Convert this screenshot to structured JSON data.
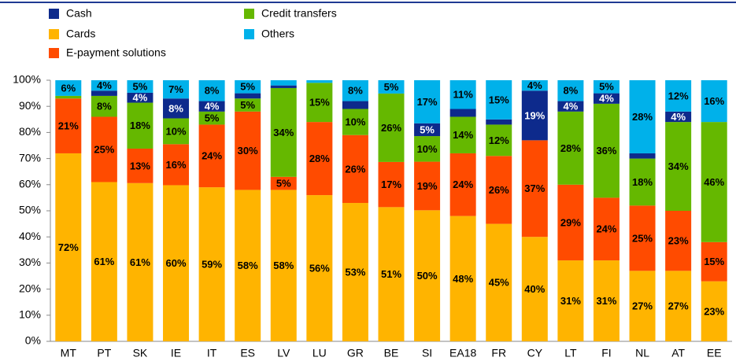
{
  "chart_data": {
    "type": "stacked_bar",
    "categories": [
      "MT",
      "PT",
      "SK",
      "IE",
      "IT",
      "ES",
      "LV",
      "LU",
      "GR",
      "BE",
      "SI",
      "EA18",
      "FR",
      "CY",
      "LT",
      "FI",
      "NL",
      "AT",
      "EE"
    ],
    "series": [
      {
        "name": "Cards",
        "color": "#ffb400",
        "label_color": "#000000",
        "values": [
          72,
          61,
          60.6,
          59.8,
          59,
          58,
          58,
          56,
          53,
          51.4,
          50.2,
          48,
          45,
          40,
          31,
          31,
          27,
          27,
          23
        ],
        "value_labels": [
          "72%",
          "61%",
          "61%",
          "60%",
          "59%",
          "58%",
          "58%",
          "56%",
          "53%",
          "51%",
          "50%",
          "48%",
          "45%",
          "40%",
          "31%",
          "31%",
          "27%",
          "27%",
          "23%"
        ]
      },
      {
        "name": "E-payment solutions",
        "color": "#ff4b00",
        "label_color": "#000000",
        "values": [
          21,
          25,
          13.2,
          15.7,
          24,
          30,
          5,
          28,
          26,
          17.3,
          18.6,
          24,
          26,
          37,
          29,
          24,
          25,
          23,
          15
        ],
        "value_labels": [
          "21%",
          "25%",
          "13%",
          "16%",
          "24%",
          "30%",
          "5%",
          "28%",
          "26%",
          "17%",
          "19%",
          "24%",
          "26%",
          "37%",
          "29%",
          "24%",
          "25%",
          "23%",
          "15%"
        ]
      },
      {
        "name": "Credit transfers",
        "color": "#65b800",
        "label_color": "#000000",
        "values": [
          1,
          8,
          17.6,
          9.9,
          5,
          5,
          34,
          15,
          10,
          26.2,
          9.8,
          14,
          12,
          0,
          28,
          36,
          18,
          34,
          46
        ],
        "value_labels": [
          null,
          "8%",
          "18%",
          "10%",
          "5%",
          "5%",
          "34%",
          "15%",
          "10%",
          "26%",
          "10%",
          "14%",
          "12%",
          null,
          "28%",
          "36%",
          "18%",
          "34%",
          "46%"
        ]
      },
      {
        "name": "Cash",
        "color": "#0d2a8c",
        "label_color": "#ffffff",
        "values": [
          0,
          2,
          3.8,
          7.6,
          4,
          2,
          1,
          0,
          3,
          0,
          4.9,
          3,
          2,
          19,
          4,
          4,
          2,
          4,
          0
        ],
        "value_labels": [
          null,
          null,
          "4%",
          "8%",
          "4%",
          null,
          null,
          null,
          null,
          null,
          "5%",
          null,
          null,
          "19%",
          "4%",
          "4%",
          null,
          "4%",
          null
        ]
      },
      {
        "name": "Others",
        "color": "#00b1ea",
        "label_color": "#000000",
        "values": [
          6,
          4,
          4.8,
          7,
          8,
          5,
          2,
          1,
          8,
          5.1,
          16.5,
          11,
          15,
          4,
          8,
          5,
          28,
          12,
          16
        ],
        "value_labels": [
          "6%",
          "4%",
          "5%",
          "7%",
          "8%",
          "5%",
          null,
          null,
          "8%",
          "5%",
          "17%",
          "11%",
          "15%",
          "4%",
          "8%",
          "5%",
          "28%",
          "12%",
          "16%"
        ]
      }
    ],
    "legend_order": [
      3,
      0,
      1,
      2,
      4
    ],
    "ylim": [
      0,
      100
    ],
    "yticks": [
      {
        "value": 0,
        "label": "0%"
      },
      {
        "value": 10,
        "label": "10%"
      },
      {
        "value": 20,
        "label": "20%"
      },
      {
        "value": 30,
        "label": "30%"
      },
      {
        "value": 40,
        "label": "40%"
      },
      {
        "value": 50,
        "label": "50%"
      },
      {
        "value": 60,
        "label": "60%"
      },
      {
        "value": 70,
        "label": "70%"
      },
      {
        "value": 80,
        "label": "80%"
      },
      {
        "value": 90,
        "label": "90%"
      },
      {
        "value": 100,
        "label": "100%"
      }
    ],
    "grid": false
  }
}
